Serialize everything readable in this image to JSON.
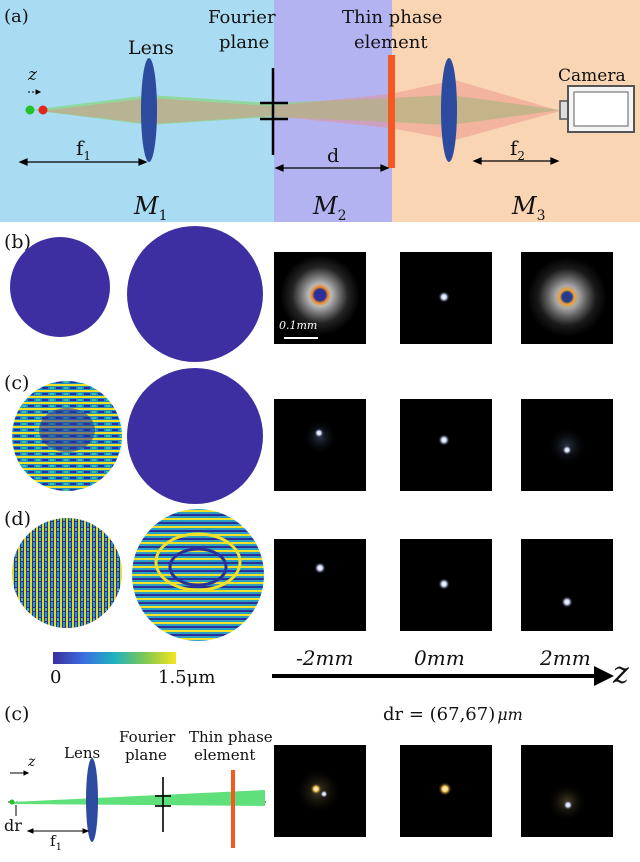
{
  "panel_a": {
    "label": "(a)",
    "z_label": "z",
    "lens_label": "Lens",
    "fourier_label_1": "Fourier",
    "fourier_label_2": "plane",
    "thin_label_1": "Thin phase",
    "thin_label_2": "element",
    "camera_label": "Camera",
    "f1_label": "f",
    "f1_sub": "1",
    "f2_label": "f",
    "f2_sub": "2",
    "d_label": "d",
    "m1_label": "M",
    "m1_sub": "1",
    "m2_label": "M",
    "m2_sub": "2",
    "m3_label": "M",
    "m3_sub": "3",
    "colors": {
      "m1": "#a9dcf2",
      "m2": "#b3b3f2",
      "m3": "#f9d5b4",
      "lens": "#2c4a9e",
      "phase": "#f25a22"
    }
  },
  "panel_b": {
    "label": "(b)",
    "scale_label": "0.1mm"
  },
  "panel_c": {
    "label": "(c)"
  },
  "panel_d": {
    "label": "(d)"
  },
  "colorbar": {
    "min_label": "0",
    "max_label": "1.5μm"
  },
  "z_axis": {
    "ticks": [
      "-2mm",
      "0mm",
      "2mm"
    ],
    "axis_label": "z"
  },
  "panel_e": {
    "label": "(c)",
    "z_label": "z",
    "lens_label": "Lens",
    "fourier_label_1": "Fourier",
    "fourier_label_2": "plane",
    "thin_label_1": "Thin phase",
    "thin_label_2": "element",
    "dr_label": "dr",
    "f1_label": "f",
    "f1_sub": "1",
    "dr_value_label": "dr = (67,67)",
    "dr_unit": "μm"
  }
}
